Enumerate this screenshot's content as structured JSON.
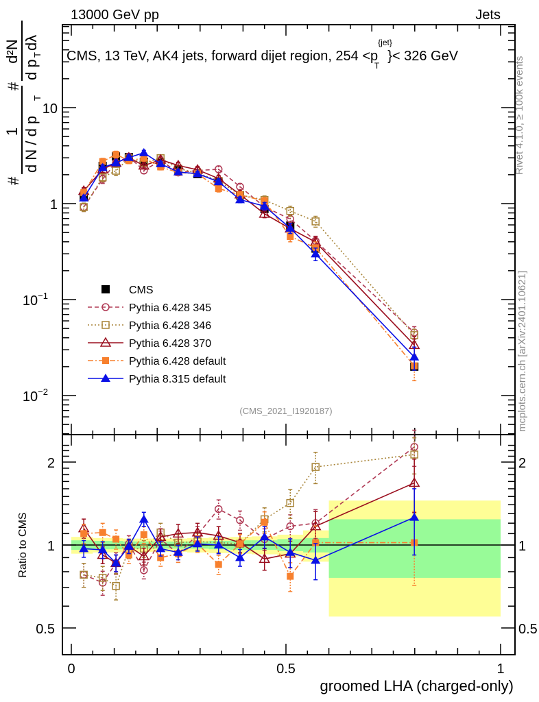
{
  "header": {
    "left": "13000 GeV pp",
    "right": "Jets"
  },
  "side_labels": {
    "rivet": "Rivet 4.1.0, ≥ 100k events",
    "mcplots": "mcplots.cern.ch [arXiv:2401.10621]"
  },
  "analysis_id": "(CMS_2021_I1920187)",
  "chart_data": [
    {
      "type": "line",
      "panel": "main",
      "title": "CMS, 13 TeV, AK4 jets, forward dijet region, 254 <p_T^{jet}< 326 GeV",
      "title_parts": {
        "before": "CMS, 13 TeV, AK4 jets, forward dijet region, 254 <p",
        "sup": "{jet}",
        "sub": "T",
        "after": "}< 326 GeV"
      },
      "ylabel": "1/N dN/dp_T d²N/dp_T dλ",
      "ylabel_parts": {
        "num_top": "d²N",
        "den_top": "d p",
        "den_top_sub": "T",
        "den_top_tail": " dλ",
        "num_bottom": "1",
        "den_bottom": "d N / d p",
        "den_bottom_sub": "T",
        "hash": "#"
      },
      "yscale": "log",
      "ylim": [
        0.004,
        30
      ],
      "yticks": [
        {
          "value": 0.01,
          "label": "10",
          "exp": "−2"
        },
        {
          "value": 0.1,
          "label": "10",
          "exp": "−1"
        },
        {
          "value": 1,
          "label": "1",
          "exp": ""
        },
        {
          "value": 10,
          "label": "10",
          "exp": ""
        }
      ],
      "xlim": [
        -0.02,
        1.03
      ],
      "x": [
        0.029,
        0.073,
        0.104,
        0.134,
        0.169,
        0.208,
        0.249,
        0.294,
        0.343,
        0.393,
        0.45,
        0.51,
        0.569,
        0.799
      ],
      "data": {
        "name": "CMS",
        "values": [
          1.18,
          2.47,
          3.1,
          3.05,
          2.73,
          2.68,
          2.27,
          2.03,
          1.69,
          1.22,
          0.88,
          0.59,
          0.34,
          0.02
        ]
      },
      "legend": {
        "position": "lower-left",
        "entries": [
          "CMS",
          "Pythia 6.428 345",
          "Pythia 6.428 346",
          "Pythia 6.428 370",
          "Pythia 6.428 default",
          "Pythia 8.315 default"
        ]
      }
    },
    {
      "type": "line",
      "panel": "ratio",
      "ylabel": "Ratio to CMS",
      "yscale": "log",
      "ylim": [
        0.44,
        2.4
      ],
      "yticks": [
        {
          "value": 0.5,
          "label": "0.5"
        },
        {
          "value": 1,
          "label": "1"
        },
        {
          "value": 2,
          "label": "2"
        }
      ],
      "xlabel": "groomed LHA (charged-only)",
      "xticks": [
        {
          "value": 0,
          "label": "0"
        },
        {
          "value": 0.5,
          "label": "0.5"
        },
        {
          "value": 1,
          "label": "1"
        }
      ],
      "band_edges": [
        0.0,
        0.05,
        0.09,
        0.12,
        0.15,
        0.19,
        0.23,
        0.27,
        0.32,
        0.37,
        0.42,
        0.48,
        0.54,
        0.6,
        1.0
      ],
      "band_inner": [
        0.04,
        0.035,
        0.035,
        0.03,
        0.03,
        0.03,
        0.03,
        0.03,
        0.035,
        0.04,
        0.04,
        0.05,
        0.06,
        0.24
      ],
      "band_outer": [
        0.07,
        0.06,
        0.06,
        0.055,
        0.055,
        0.055,
        0.055,
        0.06,
        0.065,
        0.07,
        0.075,
        0.09,
        0.13,
        0.45
      ],
      "series": [
        {
          "name": "Pythia 6.428 345",
          "color": "#b03a55",
          "marker": "open-circle",
          "dash": "6,4",
          "ratio": [
            0.78,
            0.73,
            0.86,
            1.01,
            0.81,
            1.05,
            0.93,
            1.09,
            1.35,
            1.23,
            1.05,
            1.17,
            1.2,
            2.27
          ],
          "rel_err": [
            0.1,
            0.1,
            0.09,
            0.07,
            0.07,
            0.07,
            0.07,
            0.07,
            0.08,
            0.08,
            0.09,
            0.1,
            0.12,
            0.15
          ]
        },
        {
          "name": "Pythia 6.428 346",
          "color": "#a88438",
          "marker": "open-square",
          "dash": "2,3",
          "ratio": [
            0.78,
            0.76,
            0.71,
            0.97,
            0.97,
            1.11,
            1.02,
            1.03,
            1.02,
            1.01,
            1.24,
            1.42,
            1.92,
            2.13
          ],
          "rel_err": [
            0.1,
            0.1,
            0.11,
            0.08,
            0.07,
            0.08,
            0.07,
            0.07,
            0.08,
            0.08,
            0.1,
            0.12,
            0.13,
            0.15
          ]
        },
        {
          "name": "Pythia 6.428 370",
          "color": "#9a0e1e",
          "marker": "open-triangle",
          "dash": "",
          "ratio": [
            1.15,
            0.92,
            0.86,
            0.99,
            0.91,
            1.07,
            1.1,
            1.11,
            1.08,
            1.02,
            0.89,
            0.93,
            1.17,
            1.68
          ],
          "rel_err": [
            0.08,
            0.07,
            0.07,
            0.06,
            0.07,
            0.07,
            0.08,
            0.08,
            0.08,
            0.08,
            0.09,
            0.11,
            0.13,
            0.22
          ]
        },
        {
          "name": "Pythia 6.428 default",
          "color": "#f7802e",
          "marker": "filled-square",
          "dash": "8,3,2,3",
          "ratio": [
            1.1,
            1.11,
            1.05,
            0.92,
            1.09,
            0.9,
            0.93,
            1.01,
            0.85,
            1.01,
            1.21,
            0.77,
            1.02,
            1.02
          ],
          "rel_err": [
            0.08,
            0.08,
            0.08,
            0.07,
            0.07,
            0.07,
            0.07,
            0.07,
            0.08,
            0.08,
            0.09,
            0.12,
            0.15,
            0.3
          ]
        },
        {
          "name": "Pythia 8.315 default",
          "color": "#0a10e6",
          "marker": "filled-triangle",
          "dash": "",
          "ratio": [
            0.97,
            0.96,
            0.86,
            0.99,
            1.24,
            0.97,
            0.94,
            1.01,
            1.0,
            0.9,
            1.07,
            0.94,
            0.88,
            1.26
          ],
          "rel_err": [
            0.07,
            0.07,
            0.07,
            0.06,
            0.06,
            0.06,
            0.06,
            0.06,
            0.07,
            0.07,
            0.09,
            0.12,
            0.15,
            0.27
          ]
        }
      ],
      "band_colors": {
        "inner": "#98fb98",
        "outer": "#fefe96"
      }
    }
  ]
}
